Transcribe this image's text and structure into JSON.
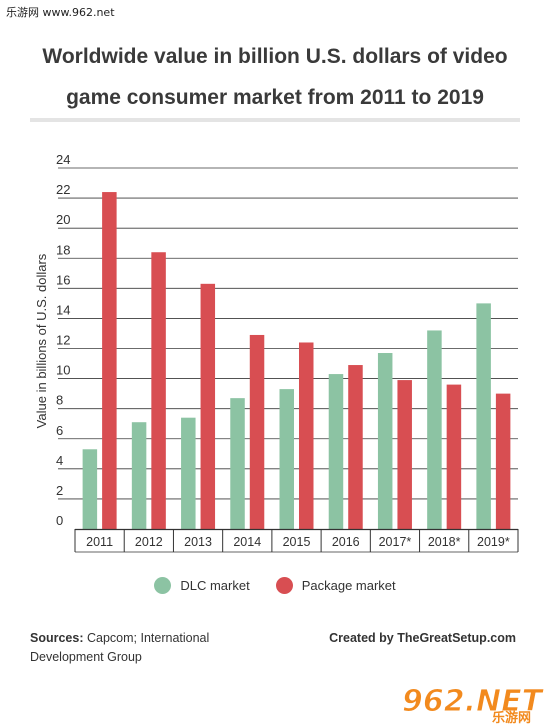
{
  "watermark_top": "乐游网 www.962.net",
  "watermark_bottom": {
    "text_main": "962.NET",
    "text_sub": "乐游网"
  },
  "chart_data": {
    "type": "bar",
    "title": "Worldwide value in billion U.S. dollars of video game consumer market from 2011 to 2019",
    "ylabel": "Value in billions of U.S. dollars",
    "xlabel": "",
    "ylim": [
      0,
      24
    ],
    "yticks": [
      0,
      2,
      4,
      6,
      8,
      10,
      12,
      14,
      16,
      18,
      20,
      22,
      24
    ],
    "categories": [
      "2011",
      "2012",
      "2013",
      "2014",
      "2015",
      "2016",
      "2017*",
      "2018*",
      "2019*"
    ],
    "series": [
      {
        "name": "DLC market",
        "color": "#8cc3a3",
        "values": [
          5.3,
          7.1,
          7.4,
          8.7,
          9.3,
          10.3,
          11.7,
          13.2,
          15.0
        ]
      },
      {
        "name": "Package market",
        "color": "#d84e52",
        "values": [
          22.4,
          18.4,
          16.3,
          12.9,
          12.4,
          10.9,
          9.9,
          9.6,
          9.0
        ]
      }
    ],
    "grid": true,
    "legend_position": "bottom-center"
  },
  "footer": {
    "sources_label": "Sources:",
    "sources_text": "Capcom; International Development Group",
    "credit": "Created by TheGreatSetup.com"
  }
}
